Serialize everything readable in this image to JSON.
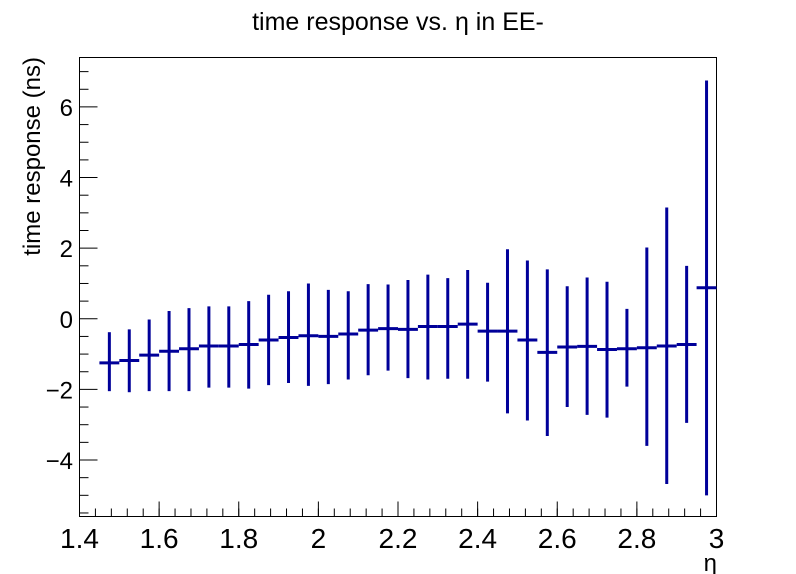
{
  "chart_data": {
    "type": "scatter",
    "title": "time response vs. η in EE-",
    "xlabel": "η",
    "ylabel": "time response (ns)",
    "xlim": [
      1.4,
      3.0
    ],
    "ylim": [
      -5.6,
      7.4
    ],
    "xticks": [
      "1.4",
      "1.6",
      "1.8",
      "2",
      "2.2",
      "2.4",
      "2.6",
      "2.8",
      "3"
    ],
    "yticks": [
      "−4",
      "−2",
      "0",
      "2",
      "4",
      "6"
    ],
    "ytick_values": [
      -4,
      -2,
      0,
      2,
      4,
      6
    ],
    "bin_width": 0.05,
    "color": "#000099",
    "series": [
      {
        "x": [
          1.475,
          1.525,
          1.575,
          1.625,
          1.675,
          1.725,
          1.775,
          1.825,
          1.875,
          1.925,
          1.975,
          2.025,
          2.075,
          2.125,
          2.175,
          2.225,
          2.275,
          2.325,
          2.375,
          2.425,
          2.475,
          2.525,
          2.575,
          2.625,
          2.675,
          2.725,
          2.775,
          2.825,
          2.875,
          2.925,
          2.975
        ],
        "y": [
          -1.25,
          -1.18,
          -1.03,
          -0.92,
          -0.85,
          -0.77,
          -0.77,
          -0.73,
          -0.6,
          -0.53,
          -0.48,
          -0.5,
          -0.43,
          -0.32,
          -0.28,
          -0.3,
          -0.22,
          -0.22,
          -0.15,
          -0.35,
          -0.35,
          -0.6,
          -0.95,
          -0.8,
          -0.78,
          -0.87,
          -0.85,
          -0.82,
          -0.77,
          -0.73,
          0.88
        ],
        "ymin": [
          -2.05,
          -2.08,
          -2.05,
          -2.05,
          -2.05,
          -1.95,
          -1.95,
          -1.98,
          -1.88,
          -1.82,
          -1.9,
          -1.85,
          -1.72,
          -1.6,
          -1.47,
          -1.68,
          -1.72,
          -1.7,
          -1.7,
          -1.78,
          -2.68,
          -2.88,
          -3.32,
          -2.5,
          -2.72,
          -2.8,
          -1.92,
          -3.6,
          -4.68,
          -2.95,
          -5.0
        ],
        "ymax": [
          -0.38,
          -0.3,
          -0.02,
          0.22,
          0.3,
          0.35,
          0.35,
          0.5,
          0.68,
          0.78,
          1.0,
          0.82,
          0.78,
          0.98,
          0.97,
          1.1,
          1.25,
          1.15,
          1.38,
          1.02,
          1.97,
          1.65,
          1.4,
          0.92,
          1.17,
          1.05,
          0.28,
          2.02,
          3.15,
          1.5,
          6.75
        ]
      }
    ]
  }
}
